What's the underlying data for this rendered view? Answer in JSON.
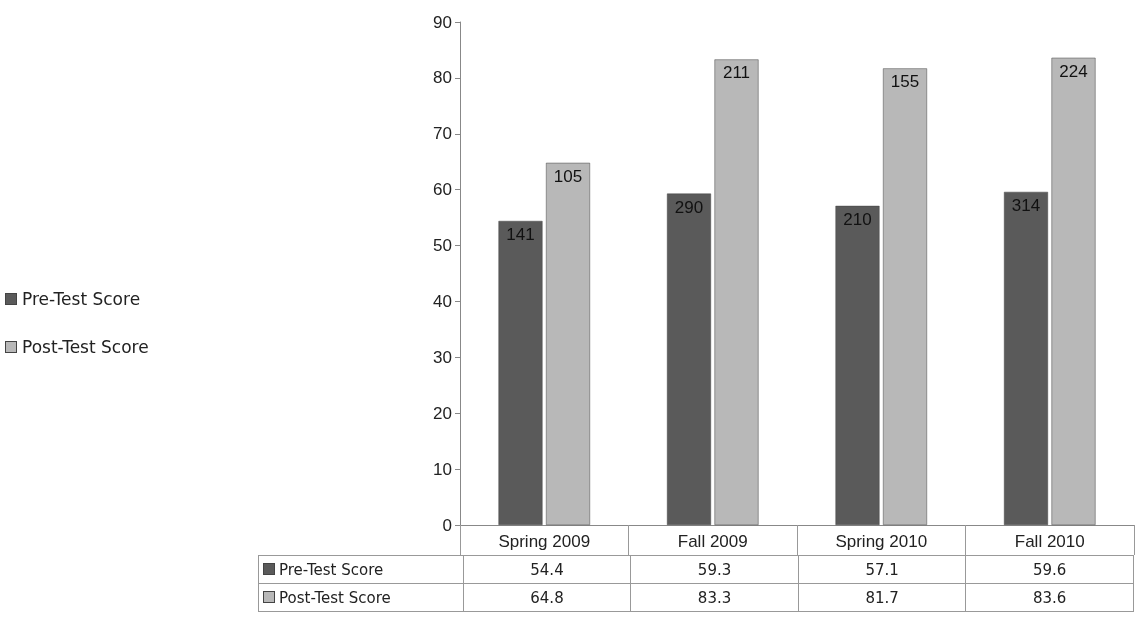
{
  "chart_data": {
    "type": "bar",
    "categories": [
      "Spring 2009",
      "Fall 2009",
      "Spring 2010",
      "Fall 2010"
    ],
    "series": [
      {
        "name": "Pre-Test Score",
        "color": "#5a5a5a",
        "values": [
          54.4,
          59.3,
          57.1,
          59.6
        ]
      },
      {
        "name": "Post-Test Score",
        "color": "#b8b8b8",
        "values": [
          64.8,
          83.3,
          81.7,
          83.6
        ]
      }
    ],
    "annotations": [
      {
        "text": "141",
        "x": "Spring 2009",
        "y": 54.4
      },
      {
        "text": "290",
        "x": "Fall 2009",
        "y": 59.3
      },
      {
        "text": "210",
        "x": "Spring 2010",
        "y": 57.1
      },
      {
        "text": "314",
        "x": "Fall 2010",
        "y": 59.6
      },
      {
        "text": "105",
        "x": "Spring 2009",
        "y": 64.8
      },
      {
        "text": "211",
        "x": "Fall 2009",
        "y": 83.3
      },
      {
        "text": "155",
        "x": "Spring 2010",
        "y": 81.7
      },
      {
        "text": "224",
        "x": "Fall 2010",
        "y": 83.6
      }
    ],
    "ylim": [
      0,
      90
    ],
    "yticks": [
      0,
      10,
      20,
      30,
      40,
      50,
      60,
      70,
      80,
      90
    ],
    "grid": false,
    "legend": "left",
    "data_labels": true
  }
}
